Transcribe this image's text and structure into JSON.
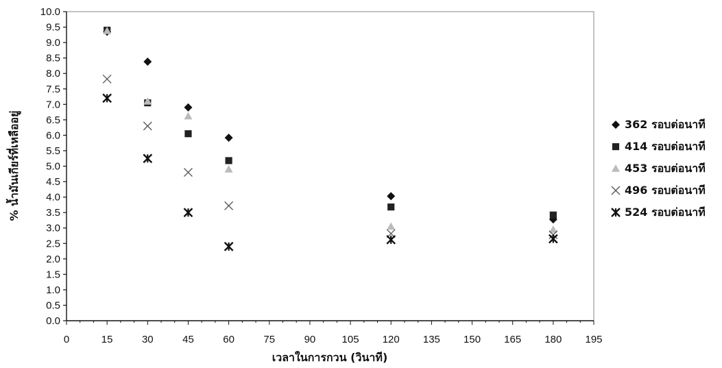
{
  "chart_data": {
    "type": "scatter",
    "xlabel": "เวลาในการกวน (วินาที)",
    "ylabel": "% น้ำมันเกียร์ที่เหลืออยู่",
    "xlim": [
      0,
      195
    ],
    "ylim": [
      0,
      10
    ],
    "xticks": [
      "0",
      "15",
      "30",
      "45",
      "60",
      "75",
      "90",
      "105",
      "120",
      "135",
      "150",
      "165",
      "180",
      "195"
    ],
    "yticks": [
      "0.0",
      "0.5",
      "1.0",
      "1.5",
      "2.0",
      "2.5",
      "3.0",
      "3.5",
      "4.0",
      "4.5",
      "5.0",
      "5.5",
      "6.0",
      "6.5",
      "7.0",
      "7.5",
      "8.0",
      "8.5",
      "9.0",
      "9.5",
      "10.0"
    ],
    "grid": false,
    "legend_position": "right",
    "series": [
      {
        "name": "362 รอบต่อนาที",
        "marker": "diamond",
        "color": "#111111",
        "x": [
          15,
          30,
          45,
          60,
          120,
          180
        ],
        "y": [
          9.35,
          8.38,
          6.9,
          5.92,
          4.03,
          3.28
        ]
      },
      {
        "name": "414 รอบต่อนาที",
        "marker": "square",
        "color": "#222222",
        "x": [
          15,
          30,
          45,
          60,
          120,
          180
        ],
        "y": [
          9.4,
          7.05,
          6.05,
          5.18,
          3.68,
          3.42
        ]
      },
      {
        "name": "453 รอบต่อนาที",
        "marker": "triangle",
        "color": "#bbbbbb",
        "x": [
          15,
          30,
          45,
          60,
          120,
          180
        ],
        "y": [
          9.38,
          7.1,
          6.62,
          4.9,
          3.05,
          2.95
        ]
      },
      {
        "name": "496 รอบต่อนาที",
        "marker": "x",
        "color": "#555555",
        "x": [
          15,
          30,
          45,
          60,
          120,
          180
        ],
        "y": [
          7.82,
          6.3,
          4.8,
          3.72,
          2.82,
          2.78
        ]
      },
      {
        "name": "524 รอบต่อนาที",
        "marker": "star",
        "color": "#111111",
        "x": [
          15,
          30,
          45,
          60,
          120,
          180
        ],
        "y": [
          7.2,
          5.25,
          3.5,
          2.4,
          2.62,
          2.65
        ]
      }
    ]
  }
}
